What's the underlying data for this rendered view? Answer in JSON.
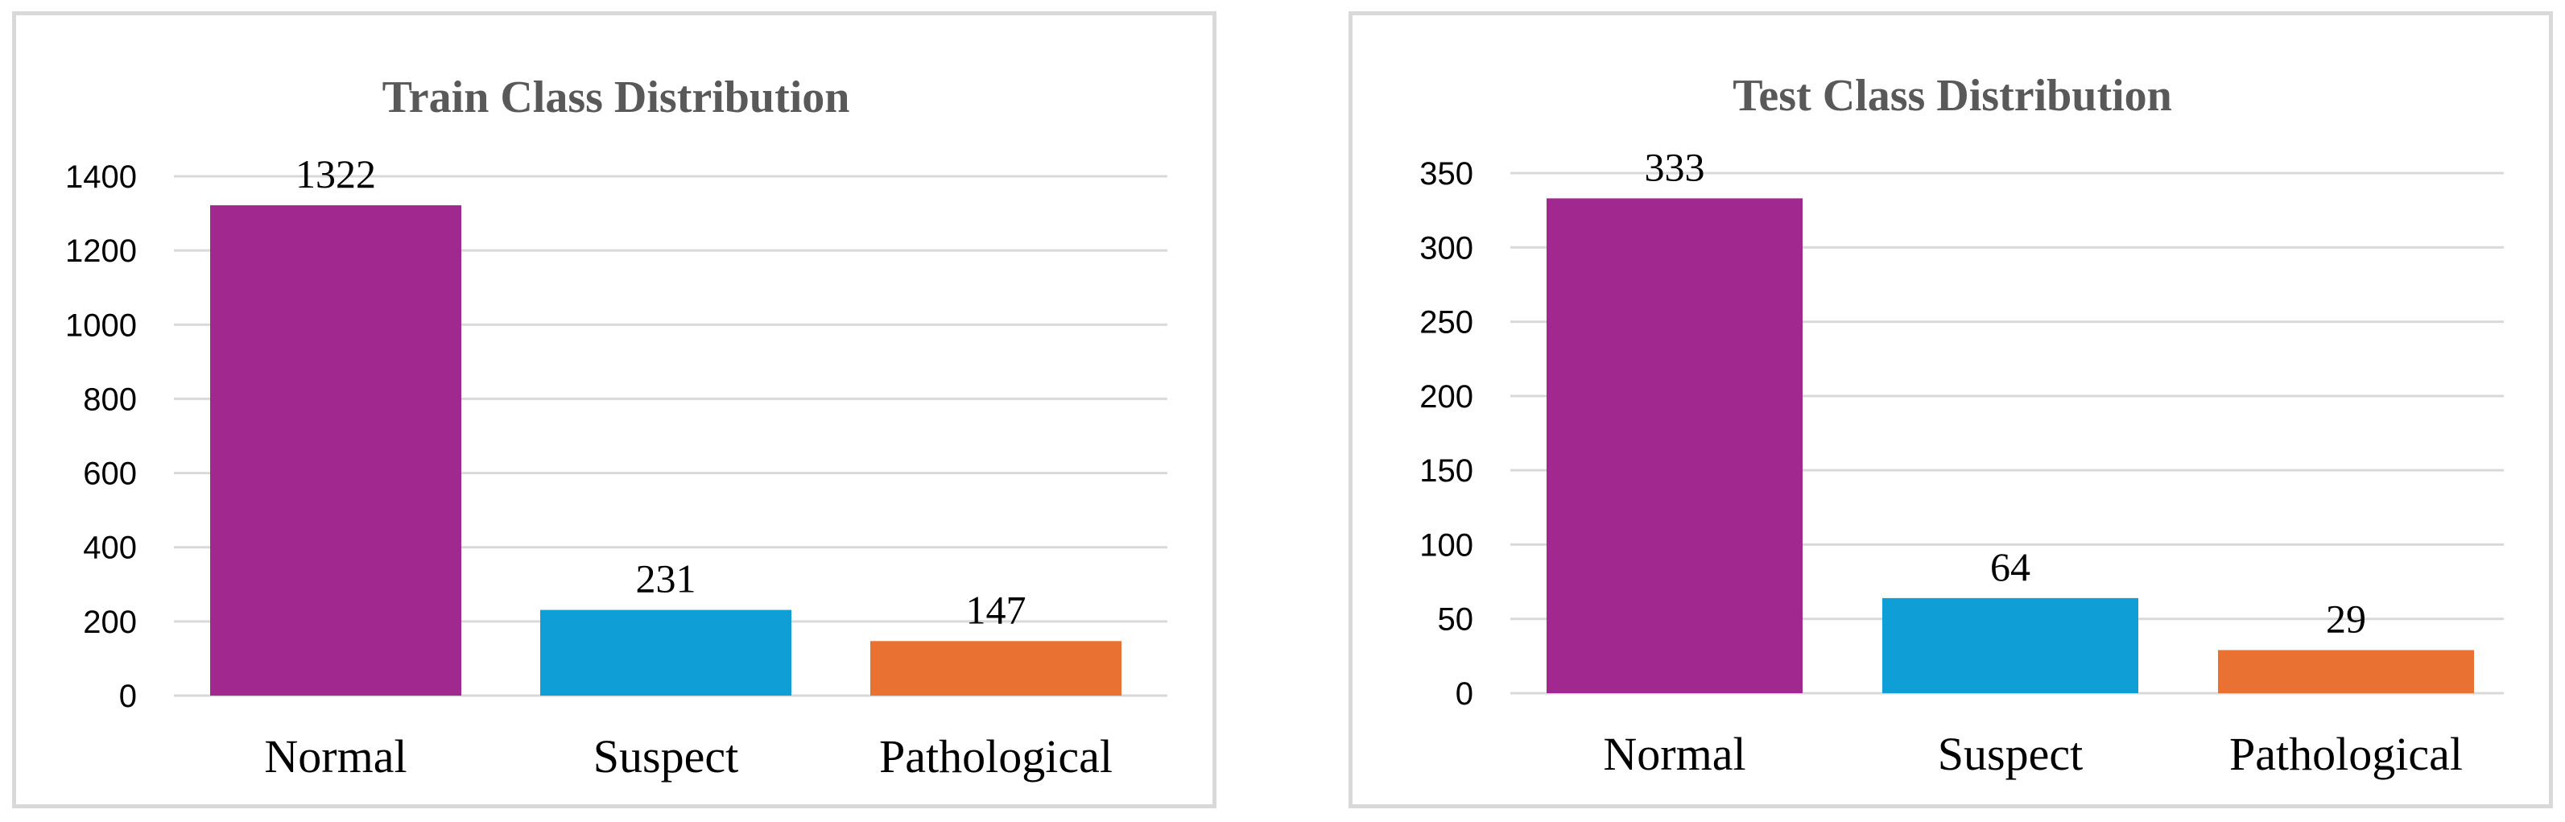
{
  "chart_data": [
    {
      "type": "bar",
      "title": "Train  Class Distribution",
      "categories": [
        "Normal",
        "Suspect",
        "Pathological"
      ],
      "values": [
        1322,
        231,
        147
      ],
      "data_labels": [
        "1322",
        "231",
        "147"
      ],
      "colors": [
        "#a0288f",
        "#0f9ed5",
        "#e97132"
      ],
      "yticks": [
        "0",
        "200",
        "400",
        "600",
        "800",
        "1000",
        "1200",
        "1400"
      ],
      "ylim": [
        0,
        1400
      ],
      "grid": true,
      "legend": "none"
    },
    {
      "type": "bar",
      "title": "Test Class Distribution",
      "categories": [
        "Normal",
        "Suspect",
        "Pathological"
      ],
      "values": [
        333,
        64,
        29
      ],
      "data_labels": [
        "333",
        "64",
        "29"
      ],
      "colors": [
        "#a0288f",
        "#0f9ed5",
        "#e97132"
      ],
      "yticks": [
        "0",
        "50",
        "100",
        "150",
        "200",
        "250",
        "300",
        "350"
      ],
      "ylim": [
        0,
        350
      ],
      "grid": true,
      "legend": "none"
    }
  ]
}
